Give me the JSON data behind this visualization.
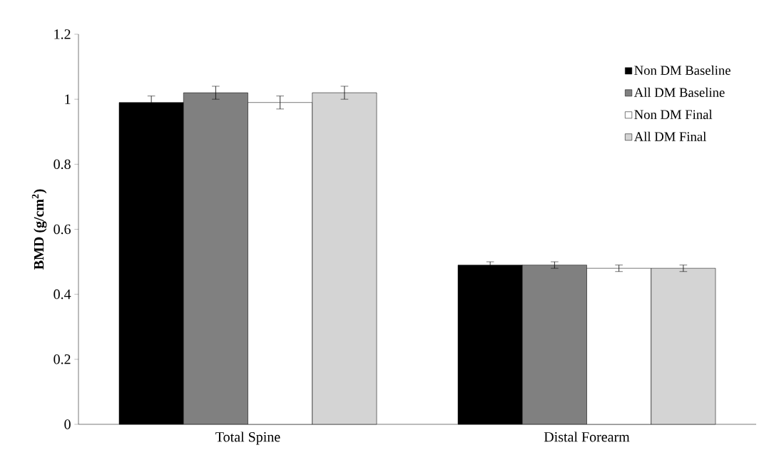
{
  "chart_data": {
    "type": "bar",
    "ylabel": "BMD (g/cm$^{2}$)",
    "categories": [
      "Total Spine",
      "Distal Forearm"
    ],
    "series": [
      {
        "name": "Non DM Baseline",
        "color": "#000000",
        "values": [
          0.99,
          0.49
        ],
        "errors": [
          0.02,
          0.01
        ]
      },
      {
        "name": "All DM Baseline",
        "color": "#808080",
        "values": [
          1.02,
          0.49
        ],
        "errors": [
          0.02,
          0.01
        ]
      },
      {
        "name": "Non DM Final",
        "color": "#ffffff",
        "values": [
          0.99,
          0.48
        ],
        "errors": [
          0.02,
          0.01
        ]
      },
      {
        "name": "All DM Final",
        "color": "#d4d4d4",
        "values": [
          1.02,
          0.48
        ],
        "errors": [
          0.02,
          0.01
        ]
      }
    ],
    "ylim": [
      0,
      1.2
    ],
    "yticks": [
      0,
      0.2,
      0.4,
      0.6,
      0.8,
      1,
      1.2
    ],
    "grid": false,
    "legend": "top right"
  }
}
